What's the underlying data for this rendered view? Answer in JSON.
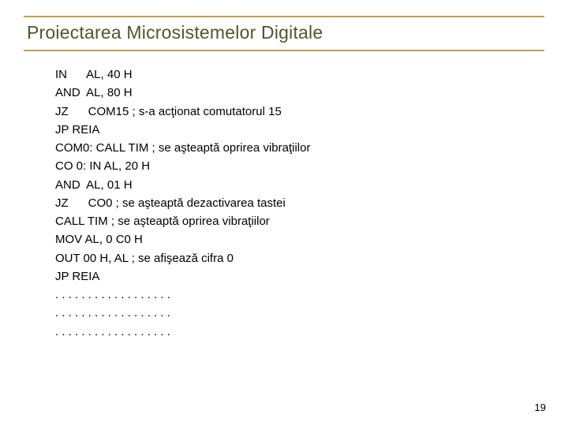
{
  "title": "Proiectarea Microsistemelor Digitale",
  "title_color": "#4a5a28",
  "border_color": "#c0a050",
  "code_lines": [
    "IN      AL, 40 H",
    "AND  AL, 80 H",
    "JZ      COM15 ; s-a acţionat comutatorul 15",
    "JP REIA",
    "COM0: CALL TIM ; se aşteaptă oprirea vibraţiilor",
    "CO 0: IN AL, 20 H",
    "AND  AL, 01 H",
    "JZ      CO0 ; se aşteaptă dezactivarea tastei",
    "CALL TIM ; se aşteaptă oprirea vibraţiilor",
    "MOV AL, 0 C0 H",
    "OUT 00 H, AL ; se afişează cifra 0",
    "JP REIA",
    ". . . . . . . . . . . . . . . . . .",
    ". . . . . . . . . . . . . . . . . .",
    ". . . . . . . . . . . . . . . . . ."
  ],
  "page_number": "19"
}
